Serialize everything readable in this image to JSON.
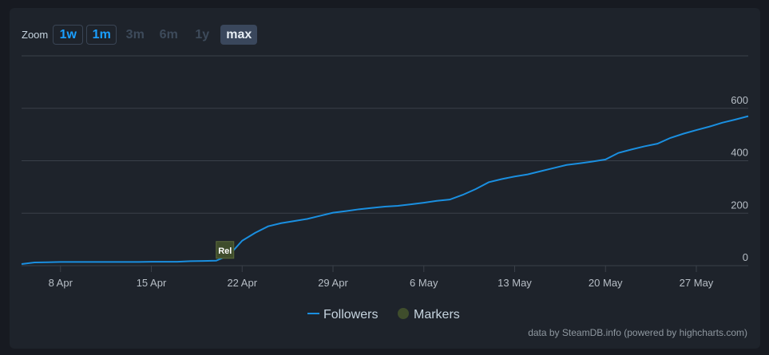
{
  "chart_data": {
    "type": "line",
    "zoom_label": "Zoom",
    "zoom_buttons": [
      "1w",
      "1m",
      "3m",
      "6m",
      "1y",
      "max"
    ],
    "zoom_enabled": [
      true,
      true,
      false,
      false,
      false,
      true
    ],
    "zoom_selected": "max",
    "x": [
      "5 Apr",
      "6 Apr",
      "7 Apr",
      "8 Apr",
      "9 Apr",
      "10 Apr",
      "11 Apr",
      "12 Apr",
      "13 Apr",
      "14 Apr",
      "15 Apr",
      "16 Apr",
      "17 Apr",
      "18 Apr",
      "19 Apr",
      "20 Apr",
      "21 Apr",
      "22 Apr",
      "23 Apr",
      "24 Apr",
      "25 Apr",
      "26 Apr",
      "27 Apr",
      "28 Apr",
      "29 Apr",
      "30 Apr",
      "1 May",
      "2 May",
      "3 May",
      "4 May",
      "5 May",
      "6 May",
      "7 May",
      "8 May",
      "9 May",
      "10 May",
      "11 May",
      "12 May",
      "13 May",
      "14 May",
      "15 May",
      "16 May",
      "17 May",
      "18 May",
      "19 May",
      "20 May",
      "21 May",
      "22 May",
      "23 May",
      "24 May",
      "25 May",
      "26 May",
      "27 May",
      "28 May",
      "29 May",
      "30 May",
      "31 May"
    ],
    "series": [
      {
        "name": "Followers",
        "color": "#1a8fe0",
        "values": [
          6,
          12,
          13,
          14,
          14,
          14,
          14,
          14,
          14,
          14,
          15,
          15,
          15,
          17,
          18,
          19,
          40,
          95,
          125,
          150,
          162,
          170,
          178,
          190,
          202,
          208,
          215,
          220,
          225,
          228,
          234,
          240,
          247,
          252,
          270,
          292,
          318,
          330,
          340,
          348,
          360,
          372,
          384,
          390,
          397,
          405,
          430,
          443,
          455,
          465,
          487,
          503,
          517,
          530,
          545,
          557,
          570
        ]
      }
    ],
    "markers": {
      "name": "Markers",
      "color": "#3f4d2c",
      "points": [
        {
          "x": "20 Apr",
          "label": "Rel"
        }
      ]
    },
    "xlim": [
      "5 Apr",
      "31 May"
    ],
    "xticks": [
      "8 Apr",
      "15 Apr",
      "22 Apr",
      "29 Apr",
      "6 May",
      "13 May",
      "20 May",
      "27 May"
    ],
    "ylim": [
      0,
      800
    ],
    "yticks": [
      0,
      200,
      400,
      600
    ],
    "grid": true,
    "credits": "data by SteamDB.info (powered by highcharts.com)"
  }
}
